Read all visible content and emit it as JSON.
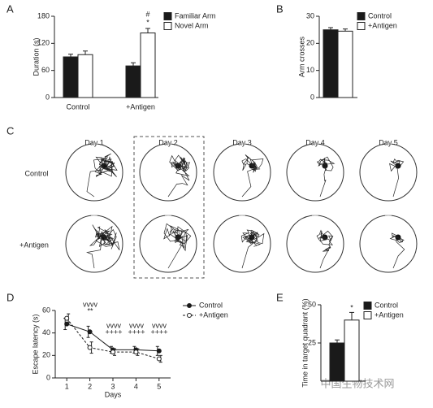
{
  "panel_labels": [
    "A",
    "B",
    "C",
    "D",
    "E"
  ],
  "chart_data": [
    {
      "type": "bar",
      "ylabel": "Duration (s)",
      "categories": [
        "Control",
        "+Antigen"
      ],
      "series": [
        {
          "name": "Familiar Arm",
          "color": "#1a1a1a",
          "values": [
            90,
            70
          ],
          "errors": [
            6,
            7
          ]
        },
        {
          "name": "Novel Arm",
          "color": "#ffffff",
          "values": [
            95,
            143
          ],
          "errors": [
            8,
            10
          ]
        }
      ],
      "ylim": [
        0,
        180
      ],
      "yticks": [
        0,
        60,
        120,
        180
      ],
      "annotations": [
        "#",
        "*"
      ]
    },
    {
      "type": "bar",
      "ylabel": "Arm crosses",
      "categories": [
        null
      ],
      "series": [
        {
          "name": "Control",
          "color": "#1a1a1a",
          "values": [
            25
          ],
          "errors": [
            0.8
          ]
        },
        {
          "name": "+Antigen",
          "color": "#ffffff",
          "values": [
            24.5
          ],
          "errors": [
            0.8
          ]
        }
      ],
      "ylim": [
        0,
        30
      ],
      "yticks": [
        0,
        10,
        20,
        30
      ]
    },
    {
      "type": "line",
      "ylabel": "Escape latency (s)",
      "xlabel": "Days",
      "x": [
        1,
        2,
        3,
        4,
        5
      ],
      "series": [
        {
          "name": "Control",
          "color": "#1a1a1a",
          "marker_fill": "#1a1a1a",
          "dashed": false,
          "values": [
            48,
            41,
            25,
            25,
            24
          ],
          "errors": [
            5,
            5,
            3,
            3,
            4
          ]
        },
        {
          "name": "+Antigen",
          "color": "#1a1a1a",
          "marker_fill": "#ffffff",
          "dashed": true,
          "values": [
            53,
            27,
            23,
            23,
            17
          ],
          "errors": [
            4,
            5,
            3,
            3,
            3
          ]
        }
      ],
      "xlim": [
        0.5,
        5.5
      ],
      "xticks": [
        1,
        2,
        3,
        4,
        5
      ],
      "ylim": [
        0,
        60
      ],
      "yticks": [
        0,
        20,
        40,
        60
      ],
      "annotations": [
        "vvvv",
        "**",
        "vvvv",
        "++++",
        "vvvv",
        "++++",
        "vvvv",
        "++++"
      ]
    },
    {
      "type": "bar",
      "ylabel": "Time in target quadrant (%)",
      "categories": [
        null
      ],
      "series": [
        {
          "name": "Control",
          "color": "#1a1a1a",
          "values": [
            25
          ],
          "errors": [
            2
          ]
        },
        {
          "name": "+Antigen",
          "color": "#ffffff",
          "values": [
            40
          ],
          "errors": [
            5
          ]
        }
      ],
      "ylim": [
        0,
        50
      ],
      "yticks": [
        25,
        50
      ],
      "annotations": [
        "*"
      ]
    }
  ],
  "trajectories": {
    "days": [
      "Day 1",
      "Day 2",
      "Day 3",
      "Day 4",
      "Day 5"
    ],
    "groups": [
      "Control",
      "+Antigen"
    ]
  },
  "watermark": "中国生物技术网"
}
